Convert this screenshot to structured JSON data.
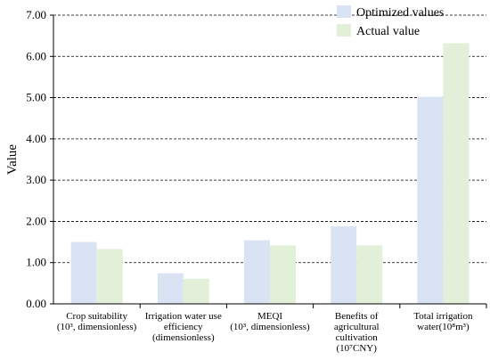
{
  "chart_data": {
    "type": "bar",
    "ylabel": "Value",
    "ylim": [
      0,
      7
    ],
    "yticks": [
      "0.00",
      "1.00",
      "2.00",
      "3.00",
      "4.00",
      "5.00",
      "6.00",
      "7.00"
    ],
    "grid": "horizontal dashed",
    "legend_position": "top-right",
    "categories": [
      {
        "lines": [
          "Crop suitability",
          "(10³, dimensionless)"
        ]
      },
      {
        "lines": [
          "Irrigation water use",
          "efficiency",
          "(dimensionless)"
        ]
      },
      {
        "lines": [
          "MEQI",
          "(10³, dimensionless)"
        ]
      },
      {
        "lines": [
          "Benefits of",
          "agricultural",
          "cultivation",
          "(10⁷CNY)"
        ]
      },
      {
        "lines": [
          "Total irrigation",
          "water(10⁸m³)"
        ]
      }
    ],
    "series": [
      {
        "name": "Optimized values",
        "color": "#dae3f3",
        "values": [
          1.5,
          0.74,
          1.54,
          1.88,
          5.02
        ]
      },
      {
        "name": "Actual value",
        "color": "#e2f0d9",
        "values": [
          1.33,
          0.61,
          1.42,
          1.42,
          6.32
        ]
      }
    ]
  }
}
